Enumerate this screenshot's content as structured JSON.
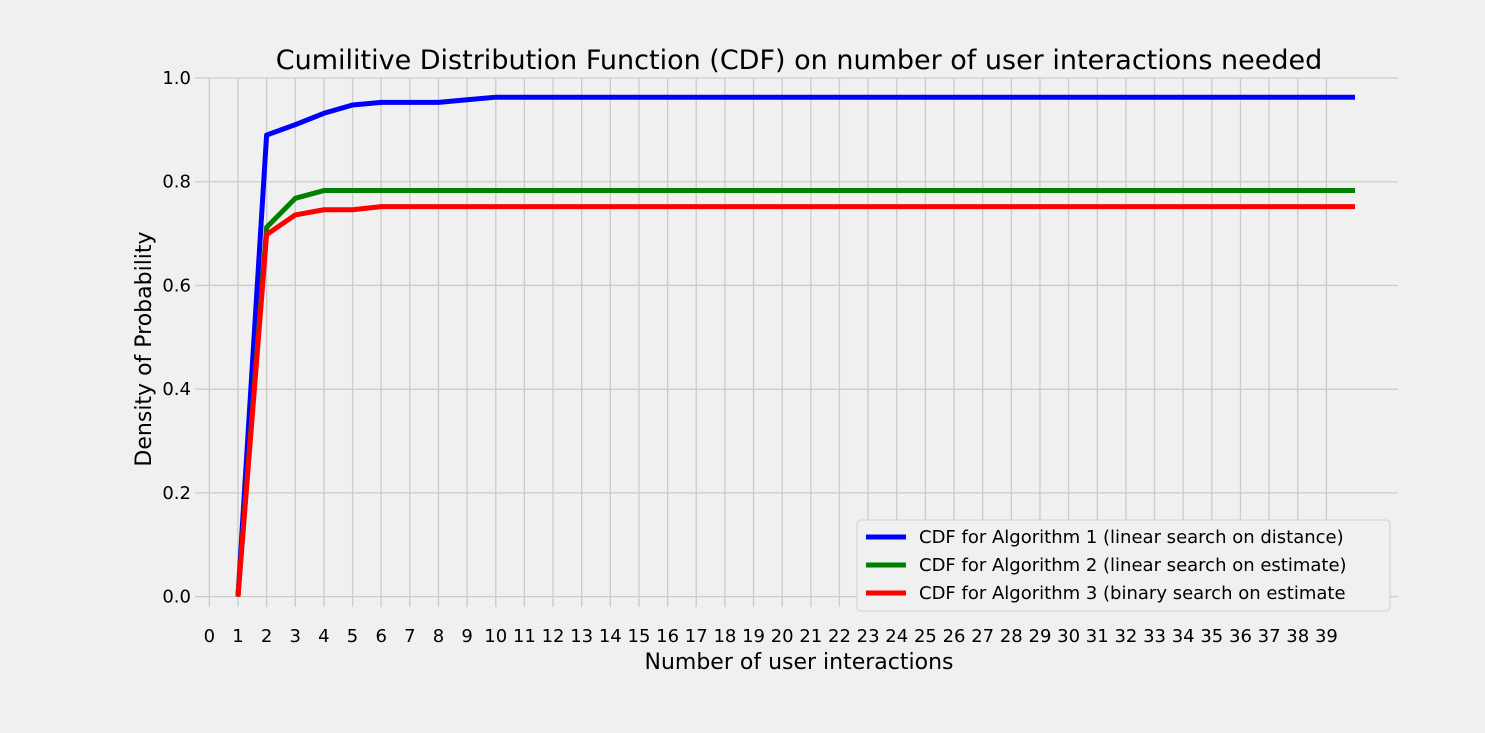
{
  "chart_data": {
    "type": "line",
    "title": "Cumilitive Distribution Function (CDF) on number of user interactions needed",
    "xlabel": "Number of user interactions",
    "ylabel": "Density of Probability",
    "xlim": [
      -0.5,
      41.5
    ],
    "ylim": [
      -0.02,
      1.0
    ],
    "grid": true,
    "legend_position": "bottom-right",
    "x_ticks": [
      0,
      1,
      2,
      3,
      4,
      5,
      6,
      7,
      8,
      9,
      10,
      11,
      12,
      13,
      14,
      15,
      16,
      17,
      18,
      19,
      20,
      21,
      22,
      23,
      24,
      25,
      26,
      27,
      28,
      29,
      30,
      31,
      32,
      33,
      34,
      35,
      36,
      37,
      38,
      39
    ],
    "y_ticks": [
      0.0,
      0.2,
      0.4,
      0.6,
      0.8,
      1.0
    ],
    "y_tick_labels": [
      "0.0",
      "0.2",
      "0.4",
      "0.6",
      "0.8",
      "1.0"
    ],
    "x": [
      1,
      2,
      3,
      4,
      5,
      6,
      7,
      8,
      9,
      10,
      11,
      12,
      13,
      14,
      15,
      16,
      17,
      18,
      19,
      20,
      21,
      22,
      23,
      24,
      25,
      26,
      27,
      28,
      29,
      30,
      31,
      32,
      33,
      34,
      35,
      36,
      37,
      38,
      39,
      40
    ],
    "series": [
      {
        "name": "CDF for Algorithm 1 (linear search on distance)",
        "color": "#0000ff",
        "values": [
          0.0,
          0.89,
          0.91,
          0.932,
          0.948,
          0.953,
          0.953,
          0.953,
          0.958,
          0.963,
          0.963,
          0.963,
          0.963,
          0.963,
          0.963,
          0.963,
          0.963,
          0.963,
          0.963,
          0.963,
          0.963,
          0.963,
          0.963,
          0.963,
          0.963,
          0.963,
          0.963,
          0.963,
          0.963,
          0.963,
          0.963,
          0.963,
          0.963,
          0.963,
          0.963,
          0.963,
          0.963,
          0.963,
          0.963,
          0.963
        ]
      },
      {
        "name": "CDF for Algorithm 2 (linear search on estimate)",
        "color": "#008000",
        "values": [
          0.0,
          0.712,
          0.768,
          0.783,
          0.783,
          0.783,
          0.783,
          0.783,
          0.783,
          0.783,
          0.783,
          0.783,
          0.783,
          0.783,
          0.783,
          0.783,
          0.783,
          0.783,
          0.783,
          0.783,
          0.783,
          0.783,
          0.783,
          0.783,
          0.783,
          0.783,
          0.783,
          0.783,
          0.783,
          0.783,
          0.783,
          0.783,
          0.783,
          0.783,
          0.783,
          0.783,
          0.783,
          0.783,
          0.783,
          0.783
        ]
      },
      {
        "name": "CDF for Algorithm 3 (binary search on estimate",
        "color": "#ff0000",
        "values": [
          0.0,
          0.698,
          0.736,
          0.746,
          0.746,
          0.752,
          0.752,
          0.752,
          0.752,
          0.752,
          0.752,
          0.752,
          0.752,
          0.752,
          0.752,
          0.752,
          0.752,
          0.752,
          0.752,
          0.752,
          0.752,
          0.752,
          0.752,
          0.752,
          0.752,
          0.752,
          0.752,
          0.752,
          0.752,
          0.752,
          0.752,
          0.752,
          0.752,
          0.752,
          0.752,
          0.752,
          0.752,
          0.752,
          0.752,
          0.752
        ]
      }
    ]
  }
}
